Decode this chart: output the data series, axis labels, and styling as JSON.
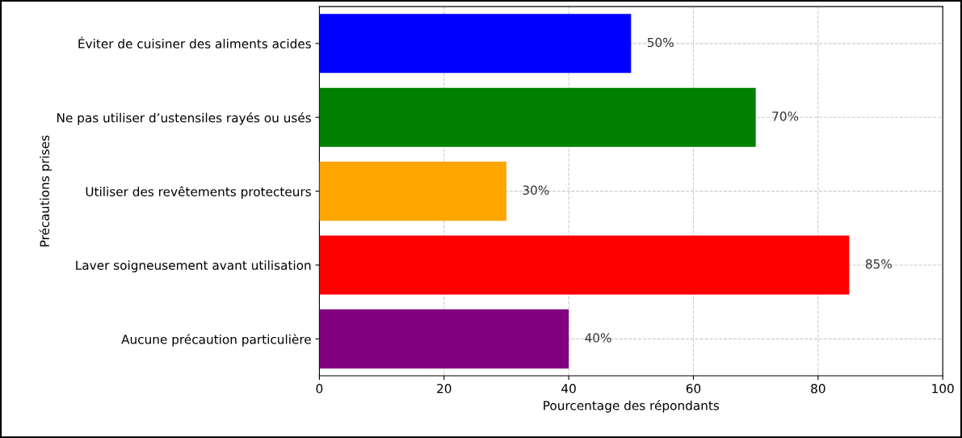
{
  "chart_data": {
    "type": "bar",
    "orientation": "horizontal",
    "xlabel": "Pourcentage des répondants",
    "ylabel": "Précautions prises",
    "categories": [
      "Éviter de cuisiner des aliments acides",
      "Ne pas utiliser d’ustensiles rayés ou usés",
      "Utiliser des revêtements protecteurs",
      "Laver soigneusement avant utilisation",
      "Aucune précaution particulière"
    ],
    "values": [
      50,
      70,
      30,
      85,
      40
    ],
    "colors": [
      "#0000ff",
      "#008000",
      "#ffa500",
      "#ff0000",
      "#800080"
    ],
    "value_labels": [
      "50%",
      "70%",
      "30%",
      "85%",
      "40%"
    ],
    "xlim": [
      0,
      100
    ],
    "xticks": [
      0,
      20,
      40,
      60,
      80,
      100
    ],
    "grid": true,
    "line_style": "dashed"
  }
}
